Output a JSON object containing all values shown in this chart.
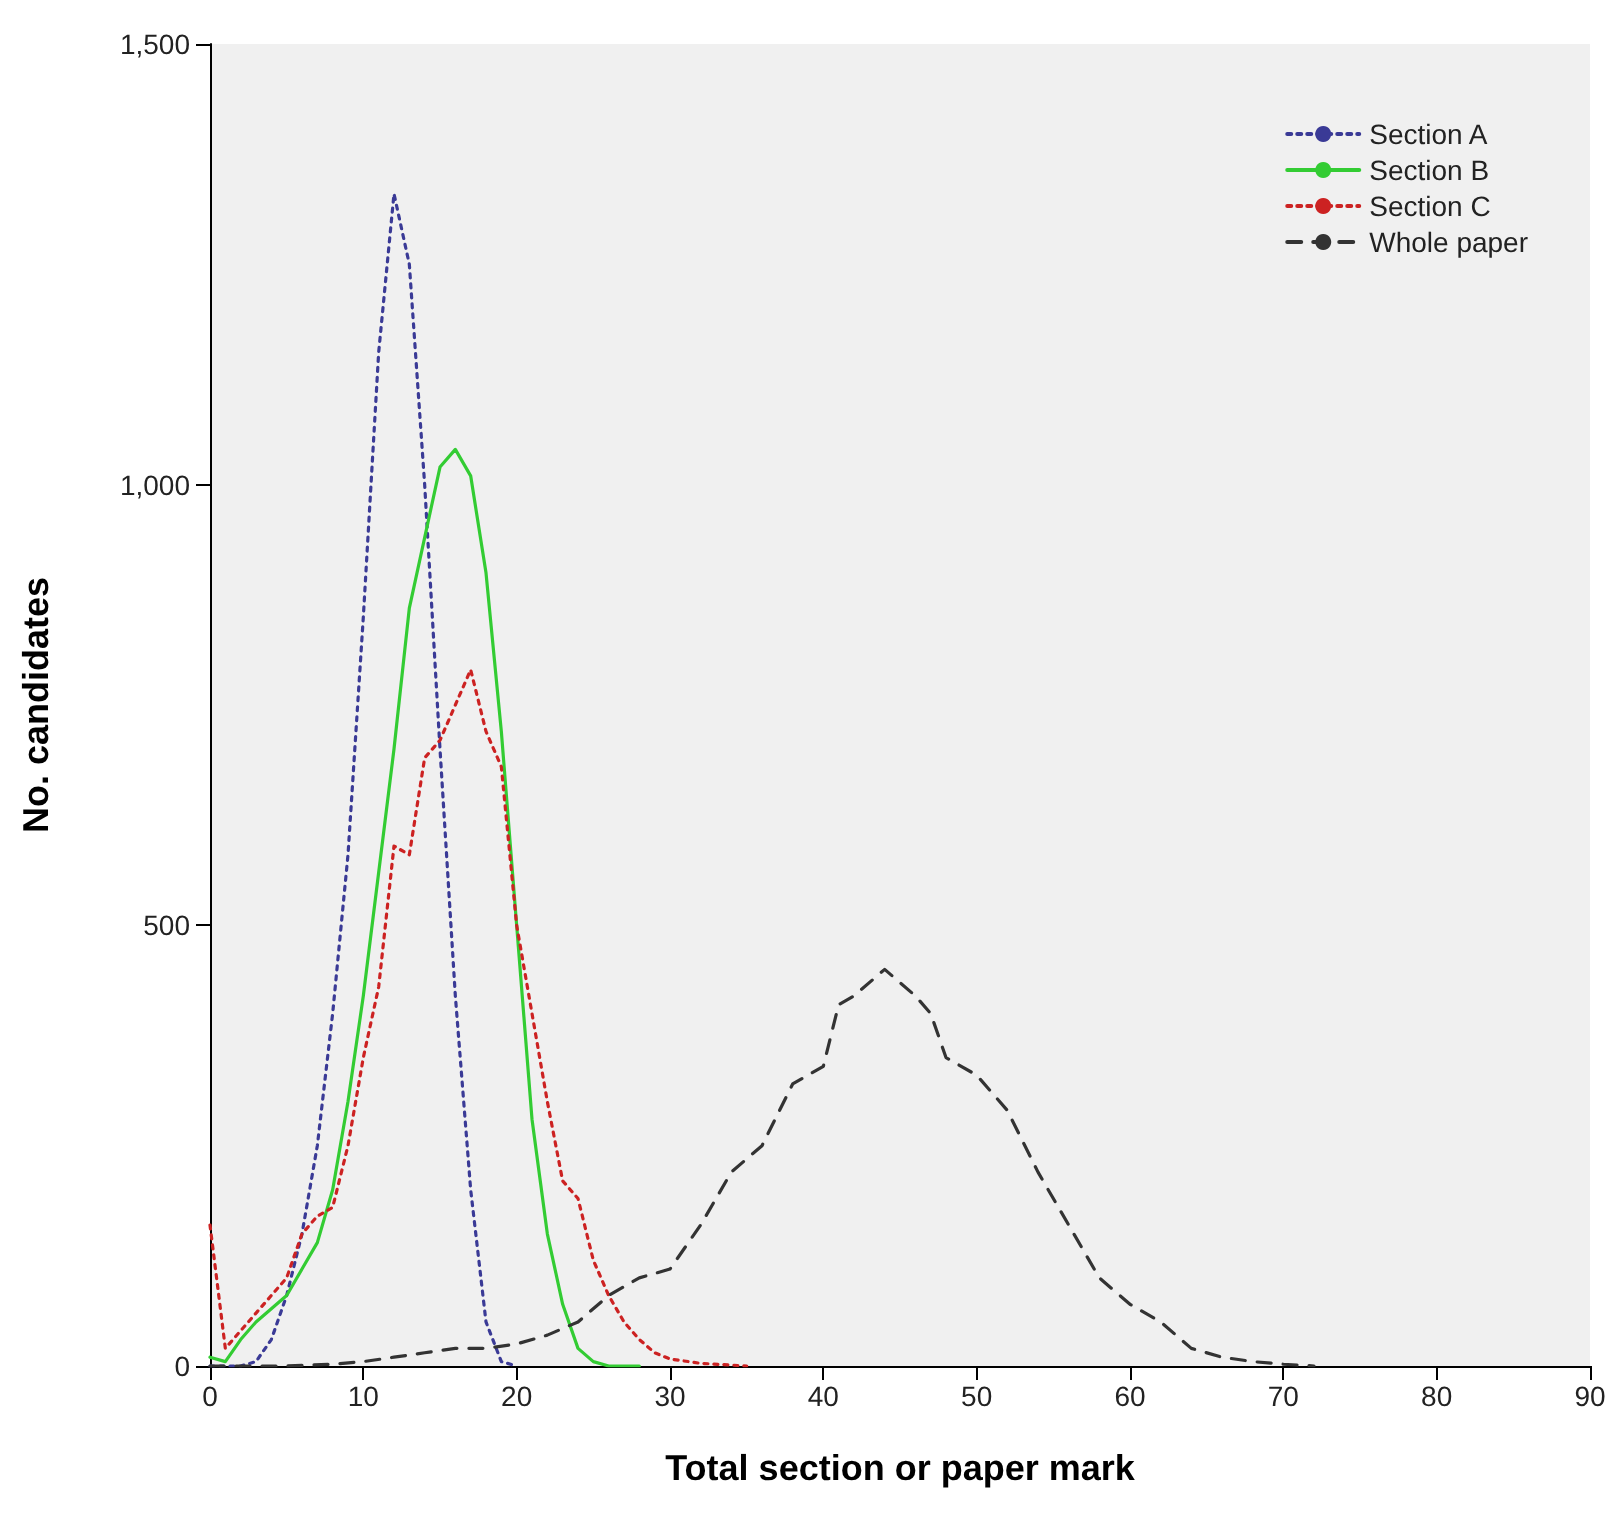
{
  "chart_data": {
    "type": "line",
    "xlabel": "Total section or paper mark",
    "ylabel": "No. candidates",
    "xlim": [
      0,
      90
    ],
    "xticks": [
      0,
      10,
      20,
      30,
      40,
      50,
      60,
      70,
      80,
      90
    ],
    "ylim": [
      0,
      1500
    ],
    "yticks": [
      0,
      500,
      {
        "value": 1000,
        "label": "1,000"
      },
      {
        "value": 1500,
        "label": "1,500"
      }
    ],
    "grid": false,
    "legend": "top right",
    "marker": "none",
    "series": [
      {
        "name": "Section A",
        "color": "#3a3a96",
        "line_style": "dotted",
        "x": [
          0,
          1,
          2,
          3,
          4,
          5,
          6,
          7,
          8,
          9,
          10,
          11,
          12,
          13,
          14,
          15,
          16,
          17,
          18,
          19,
          20
        ],
        "values": [
          0,
          0,
          0,
          5,
          30,
          80,
          150,
          250,
          400,
          580,
          850,
          1150,
          1330,
          1250,
          1000,
          700,
          420,
          200,
          50,
          5,
          0
        ]
      },
      {
        "name": "Section B",
        "color": "#33cc33",
        "line_style": "solid",
        "x": [
          0,
          1,
          2,
          3,
          4,
          5,
          6,
          7,
          8,
          9,
          10,
          11,
          12,
          13,
          14,
          15,
          16,
          17,
          18,
          19,
          20,
          21,
          22,
          23,
          24,
          25,
          26,
          28
        ],
        "values": [
          10,
          5,
          30,
          50,
          65,
          80,
          110,
          140,
          200,
          300,
          420,
          560,
          700,
          860,
          940,
          1020,
          1040,
          1010,
          900,
          720,
          500,
          280,
          150,
          70,
          20,
          5,
          0,
          0
        ]
      },
      {
        "name": "Section C",
        "color": "#cc2222",
        "line_style": "dotted",
        "x": [
          0,
          1,
          2,
          3,
          4,
          5,
          6,
          7,
          8,
          9,
          10,
          11,
          12,
          13,
          14,
          15,
          16,
          17,
          18,
          19,
          20,
          21,
          22,
          23,
          24,
          25,
          26,
          27,
          28,
          29,
          30,
          32,
          35
        ],
        "values": [
          160,
          20,
          40,
          60,
          80,
          100,
          150,
          170,
          180,
          250,
          350,
          430,
          590,
          580,
          690,
          710,
          750,
          790,
          720,
          680,
          500,
          400,
          300,
          210,
          190,
          120,
          80,
          50,
          30,
          15,
          8,
          3,
          0
        ]
      },
      {
        "name": "Whole paper",
        "color": "#333333",
        "line_style": "dashed",
        "x": [
          0,
          5,
          8,
          10,
          12,
          14,
          16,
          18,
          20,
          22,
          24,
          26,
          28,
          30,
          32,
          34,
          36,
          38,
          40,
          41,
          42,
          44,
          46,
          47,
          48,
          50,
          52,
          54,
          56,
          58,
          60,
          62,
          64,
          66,
          68,
          70,
          72
        ],
        "values": [
          0,
          0,
          2,
          5,
          10,
          15,
          20,
          20,
          25,
          35,
          50,
          80,
          100,
          110,
          160,
          220,
          250,
          320,
          340,
          410,
          420,
          450,
          420,
          400,
          350,
          330,
          290,
          220,
          160,
          100,
          70,
          50,
          20,
          10,
          5,
          2,
          0
        ]
      }
    ]
  }
}
